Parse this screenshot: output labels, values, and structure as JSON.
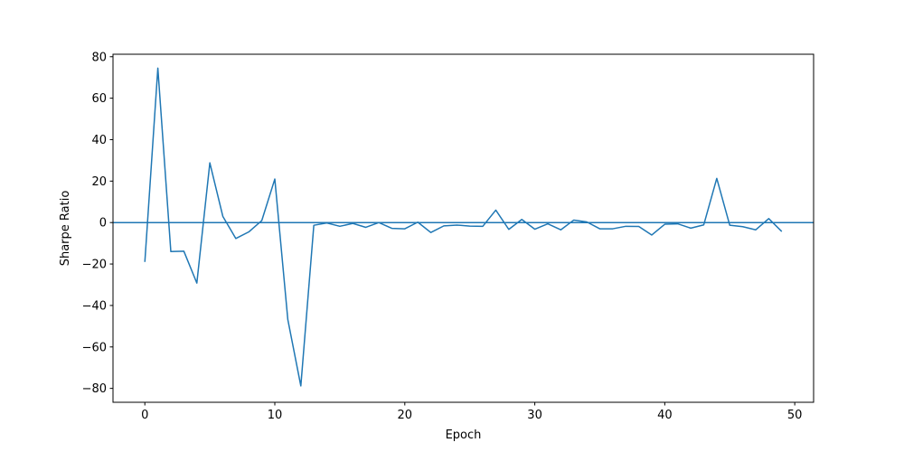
{
  "chart_data": {
    "type": "line",
    "title": "",
    "xlabel": "Epoch",
    "ylabel": "Sharpe Ratio",
    "xlim": [
      -2.45,
      51.45
    ],
    "ylim": [
      -86.7,
      81.2
    ],
    "xticks": [
      0,
      10,
      20,
      30,
      40,
      50
    ],
    "yticks": [
      -80,
      -60,
      -40,
      -20,
      0,
      20,
      40,
      60,
      80
    ],
    "grid": false,
    "legend": "none",
    "series": [
      {
        "color": "#1f77b4",
        "x": [
          0,
          1,
          2,
          3,
          4,
          5,
          6,
          7,
          8,
          9,
          10,
          11,
          12,
          13,
          14,
          15,
          16,
          17,
          18,
          19,
          20,
          21,
          22,
          23,
          24,
          25,
          26,
          27,
          28,
          29,
          30,
          31,
          32,
          33,
          34,
          35,
          36,
          37,
          38,
          39,
          40,
          41,
          42,
          43,
          44,
          45,
          46,
          47,
          48,
          49
        ],
        "values": [
          -19,
          74.5,
          -14,
          -13.8,
          -29.2,
          28.8,
          3,
          -7.7,
          -4.5,
          1,
          21,
          -46.8,
          -78.8,
          -1.3,
          -0.2,
          -1.8,
          -0.4,
          -2.3,
          0,
          -2.8,
          -3,
          0.2,
          -4.8,
          -1.6,
          -1.2,
          -1.7,
          -1.8,
          6,
          -3.3,
          1.5,
          -3.2,
          -0.6,
          -3.5,
          1.2,
          0.3,
          -3,
          -3,
          -1.8,
          -1.9,
          -6,
          -0.8,
          -0.6,
          -2.7,
          -1.1,
          21.3,
          -1.3,
          -2,
          -3.5,
          1.9,
          -4.3
        ]
      }
    ],
    "hlines": [
      {
        "y": 0,
        "color": "#1f77b4"
      }
    ]
  }
}
